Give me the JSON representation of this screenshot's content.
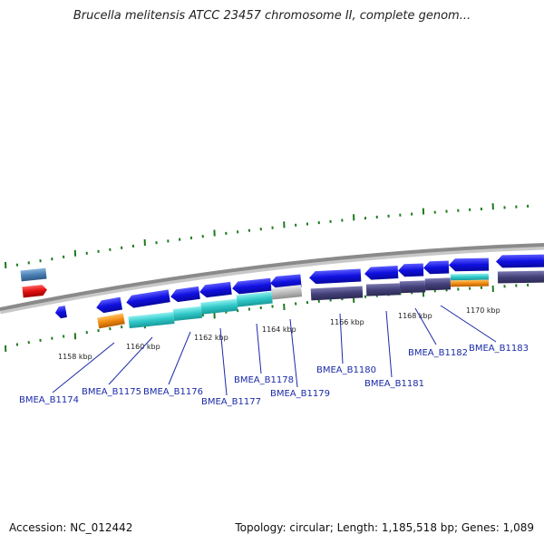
{
  "title": "Brucella melitensis ATCC 23457 chromosome II, complete genom...",
  "footer": {
    "accession": "Accession: NC_012442",
    "summary": "Topology: circular; Length: 1,185,518 bp; Genes: 1,089"
  },
  "colors": {
    "forward_cds": "#1010e0",
    "reverse_cds": "#43407a",
    "gene_teal": "#30c8c8",
    "gene_orange": "#f08a10",
    "gene_gray": "#bdbdbd",
    "gene_red": "#e01010",
    "gene_steelblue": "#4a7fb5",
    "ticks": "#1e7a1e",
    "backbone": "#8a8a8a",
    "label_text": "#1a2aa8"
  },
  "scale_labels": [
    "1158 kbp",
    "1160 kbp",
    "1162 kbp",
    "1164 kbp",
    "1166 kbp",
    "1168 kbp",
    "1170 kbp"
  ],
  "gene_labels": [
    "BMEA_B1174",
    "BMEA_B1175",
    "BMEA_B1176",
    "BMEA_B1177",
    "BMEA_B1178",
    "BMEA_B1179",
    "BMEA_B1180",
    "BMEA_B1181",
    "BMEA_B1182",
    "BMEA_B1183"
  ]
}
